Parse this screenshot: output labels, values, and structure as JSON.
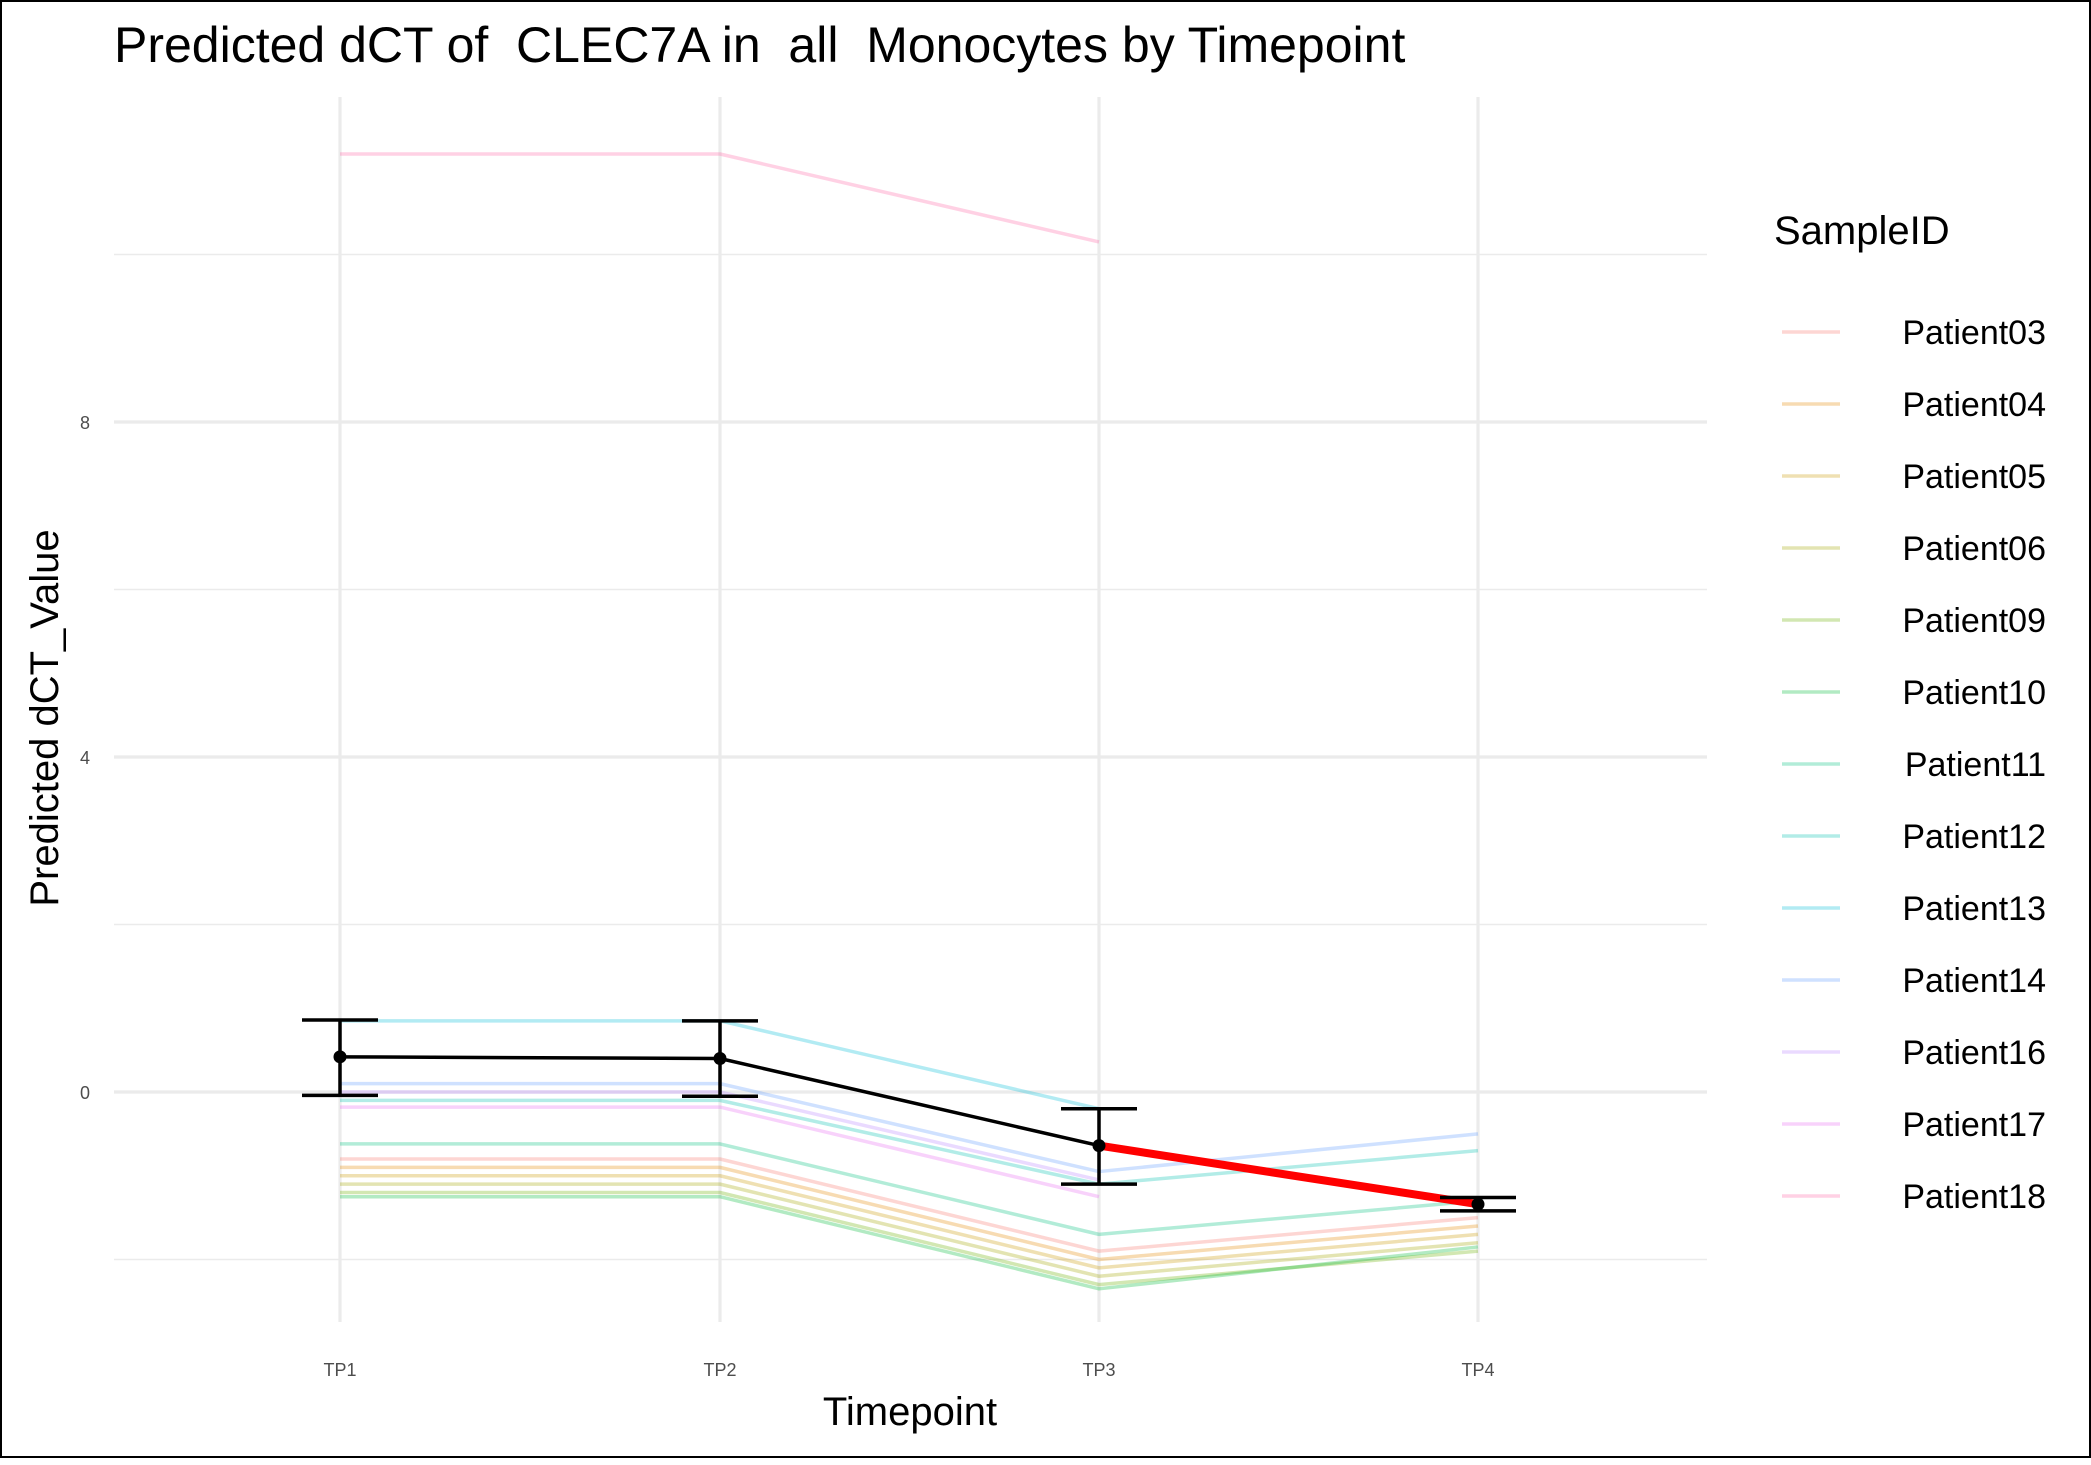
{
  "chart_data": {
    "type": "line",
    "title": "Predicted dCT of  CLEC7A in  all  Monocytes by Timepoint",
    "xlabel": "Timepoint",
    "ylabel": "Predicted dCT_Value",
    "categories": [
      "TP1",
      "TP2",
      "TP3",
      "TP4"
    ],
    "ylim": [
      -3,
      12
    ],
    "yticks": [
      0,
      4,
      8
    ],
    "legend": {
      "title": "SampleID",
      "position": "right"
    },
    "grid": true,
    "series": [
      {
        "name": "Patient03",
        "color": "#F8766D",
        "values": [
          -0.8,
          -0.8,
          -1.9,
          -1.5
        ]
      },
      {
        "name": "Patient04",
        "color": "#E58700",
        "values": [
          -0.9,
          -0.9,
          -2.0,
          -1.6
        ]
      },
      {
        "name": "Patient05",
        "color": "#C99800",
        "values": [
          -1.0,
          -1.0,
          -2.1,
          -1.7
        ]
      },
      {
        "name": "Patient06",
        "color": "#A3A500",
        "values": [
          -1.1,
          -1.1,
          -2.2,
          -1.8
        ]
      },
      {
        "name": "Patient09",
        "color": "#6BB100",
        "values": [
          -1.2,
          -1.2,
          -2.3,
          -1.9
        ]
      },
      {
        "name": "Patient10",
        "color": "#00BA38",
        "values": [
          -1.25,
          -1.25,
          -2.35,
          -1.85
        ]
      },
      {
        "name": "Patient11",
        "color": "#00BF7D",
        "values": [
          -0.62,
          -0.62,
          -1.7,
          -1.3
        ]
      },
      {
        "name": "Patient12",
        "color": "#00C0AF",
        "values": [
          -0.1,
          -0.1,
          -1.1,
          -0.7
        ]
      },
      {
        "name": "Patient13",
        "color": "#00BCD8",
        "values": [
          0.85,
          0.85,
          -0.2,
          null
        ]
      },
      {
        "name": "Patient14",
        "color": "#619CFF",
        "values": [
          0.1,
          0.1,
          -0.95,
          -0.5
        ]
      },
      {
        "name": "Patient16",
        "color": "#B983FF",
        "values": [
          0.0,
          0.0,
          -1.05,
          null
        ]
      },
      {
        "name": "Patient17",
        "color": "#E76BF3",
        "values": [
          -0.18,
          -0.18,
          -1.25,
          null
        ]
      },
      {
        "name": "Patient18",
        "color": "#FF67A4",
        "values": [
          11.2,
          11.2,
          10.15,
          null
        ]
      }
    ],
    "mean": {
      "values": [
        0.42,
        0.4,
        -0.64,
        -1.34
      ],
      "ci_lower": [
        -0.04,
        -0.05,
        -1.1,
        -1.42
      ],
      "ci_upper": [
        0.86,
        0.85,
        -0.2,
        -1.26
      ],
      "color": "#000000",
      "highlight_segment": {
        "from": "TP3",
        "to": "TP4",
        "color": "#FF0000"
      }
    }
  }
}
